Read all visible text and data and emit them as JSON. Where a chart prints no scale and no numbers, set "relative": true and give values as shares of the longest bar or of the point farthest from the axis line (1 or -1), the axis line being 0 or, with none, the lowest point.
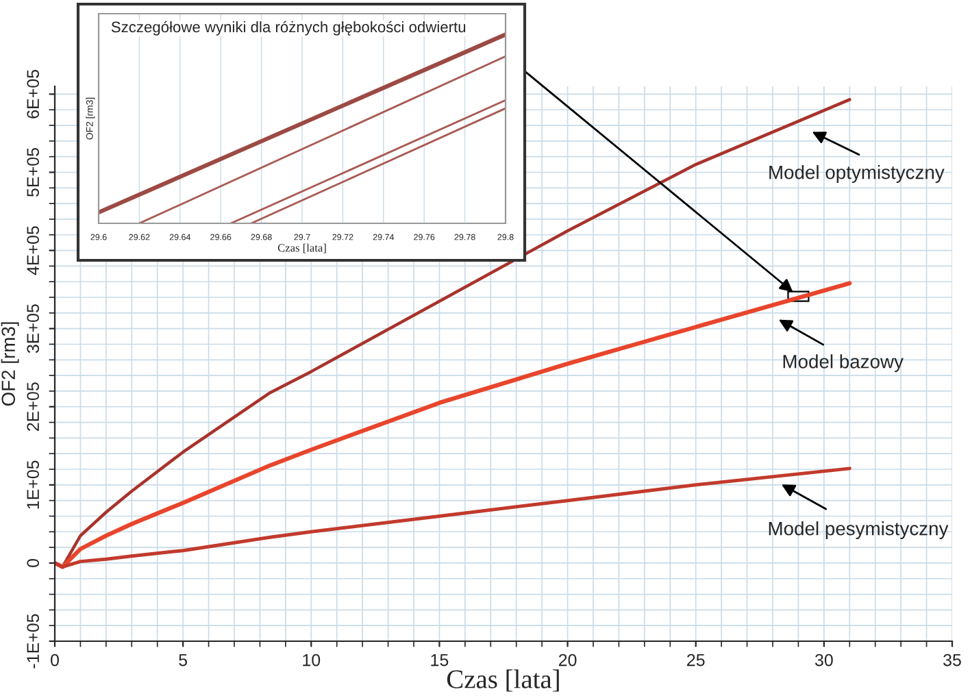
{
  "chart_data": [
    {
      "type": "line",
      "xlabel": "Czas [lata]",
      "ylabel": "OF2 [rm3]",
      "xlim": [
        0,
        35
      ],
      "xticks": [
        0,
        5,
        10,
        15,
        20,
        25,
        30,
        35
      ],
      "ylim": [
        -100000,
        610000
      ],
      "yticks": [
        {
          "value": -100000,
          "label": "-1E+05"
        },
        0,
        {
          "value": 100000,
          "label": "1E+05"
        },
        {
          "value": 200000,
          "label": "2E+05"
        },
        {
          "value": 300000,
          "label": "3E+05"
        },
        {
          "value": 400000,
          "label": "4E+05"
        },
        {
          "value": 500000,
          "label": "5E+05"
        },
        {
          "value": 600000,
          "label": "6E+05"
        }
      ],
      "grid": true,
      "legend": false,
      "x": [
        0,
        0.3,
        1,
        2,
        3,
        5,
        8.4,
        10,
        15,
        20,
        25,
        31
      ],
      "series": [
        {
          "color": "#a8332b",
          "values": [
            0,
            -5000,
            35000,
            65000,
            92000,
            142000,
            218000,
            245000,
            335000,
            425000,
            510000,
            593000
          ]
        },
        {
          "color": "#e8452c",
          "values": [
            0,
            -5000,
            18000,
            35000,
            50000,
            77000,
            125000,
            145000,
            205000,
            255000,
            302000,
            358000
          ]
        },
        {
          "color": "#c23a2c",
          "values": [
            0,
            -5000,
            2000,
            5000,
            9000,
            16000,
            33000,
            40000,
            60000,
            80000,
            100000,
            121000
          ]
        }
      ],
      "annotations": [
        "Model optymistyczny",
        "Model bazowy",
        "Model pesymistyczny"
      ]
    },
    {
      "type": "line",
      "relative": true,
      "title": "Szczegółowe wyniki dla różnych głębokości odwiertu",
      "xlabel": "Czas [lata]",
      "ylabel": "OF2 [rm3]",
      "xlim": [
        29.6,
        29.8
      ],
      "xticks": [
        29.6,
        29.62,
        29.64,
        29.66,
        29.68,
        29.7,
        29.72,
        29.74,
        29.76,
        29.78,
        29.8
      ],
      "grid": "x",
      "series": [
        {
          "color": "#9c4a44",
          "x": [
            29.6,
            29.8
          ],
          "values": [
            0.058,
            1
          ]
        },
        {
          "color": "#a85a52",
          "x": [
            29.62,
            29.8
          ],
          "values": [
            0,
            0.884
          ]
        },
        {
          "color": "#a85a52",
          "x": [
            29.665,
            29.8
          ],
          "values": [
            0,
            0.652
          ]
        },
        {
          "color": "#a85a52",
          "x": [
            29.675,
            29.8
          ],
          "values": [
            0,
            0.609
          ]
        }
      ]
    }
  ]
}
